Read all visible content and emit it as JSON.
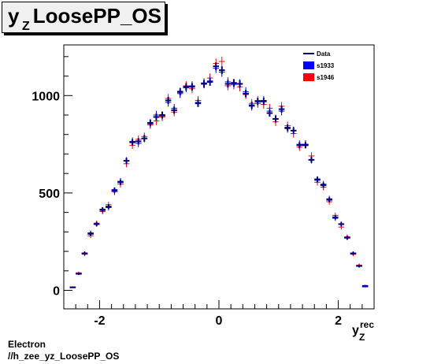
{
  "title": {
    "main": "y",
    "sub": "Z",
    "rest": " LoosePP_OS"
  },
  "xlabel": {
    "main": "y",
    "sub": "Z",
    "sup": "rec"
  },
  "footer": {
    "line1": "Electron",
    "line2": "//h_zee_yz_LoosePP_OS"
  },
  "colors": {
    "data": "#00007f",
    "s1933": "#0000ff",
    "s1946": "#ff0000"
  },
  "chart_data": {
    "type": "scatter",
    "xlim": [
      -2.6,
      2.6
    ],
    "ylim": [
      -95,
      1260
    ],
    "xticks": [
      -2,
      0,
      2
    ],
    "yticks": [
      0,
      500,
      1000
    ],
    "grid": false,
    "legend_position": "top-right",
    "legend": [
      {
        "label": "Data",
        "style": "line"
      },
      {
        "label": "s1933",
        "style": "box"
      },
      {
        "label": "s1946",
        "style": "box"
      }
    ],
    "bin_half_width": 0.05,
    "x": [
      -2.45,
      -2.35,
      -2.25,
      -2.15,
      -2.05,
      -1.95,
      -1.85,
      -1.75,
      -1.65,
      -1.55,
      -1.45,
      -1.35,
      -1.25,
      -1.15,
      -1.05,
      -0.95,
      -0.85,
      -0.75,
      -0.65,
      -0.55,
      -0.45,
      -0.35,
      -0.25,
      -0.15,
      -0.05,
      0.05,
      0.15,
      0.25,
      0.35,
      0.45,
      0.55,
      0.65,
      0.75,
      0.85,
      0.95,
      1.05,
      1.15,
      1.25,
      1.35,
      1.45,
      1.55,
      1.65,
      1.75,
      1.85,
      1.95,
      2.05,
      2.15,
      2.25,
      2.35,
      2.45
    ],
    "series": [
      {
        "name": "Data",
        "values": [
          15,
          85,
          190,
          290,
          340,
          415,
          430,
          515,
          555,
          665,
          760,
          765,
          780,
          860,
          890,
          900,
          975,
          925,
          1020,
          1045,
          1045,
          960,
          1060,
          1070,
          1150,
          1130,
          1060,
          1065,
          1060,
          1010,
          950,
          970,
          970,
          910,
          880,
          930,
          835,
          820,
          745,
          745,
          670,
          570,
          540,
          465,
          375,
          340,
          270,
          190,
          125,
          20
        ]
      },
      {
        "name": "s1933",
        "values": [
          15,
          85,
          190,
          295,
          340,
          410,
          425,
          510,
          560,
          665,
          765,
          755,
          780,
          855,
          900,
          895,
          965,
          935,
          1010,
          1040,
          1050,
          965,
          1065,
          1075,
          1140,
          1120,
          1070,
          1060,
          1060,
          1020,
          945,
          960,
          975,
          920,
          880,
          920,
          830,
          820,
          750,
          750,
          670,
          565,
          545,
          470,
          370,
          340,
          270,
          190,
          125,
          25
        ]
      },
      {
        "name": "s1946",
        "values": [
          18,
          90,
          185,
          280,
          345,
          405,
          440,
          505,
          545,
          650,
          745,
          775,
          790,
          850,
          870,
          890,
          985,
          915,
          1015,
          1050,
          1035,
          975,
          1060,
          1090,
          1165,
          1175,
          1050,
          1055,
          1045,
          1005,
          960,
          975,
          955,
          935,
          865,
          945,
          845,
          805,
          735,
          750,
          690,
          555,
          530,
          455,
          385,
          325,
          275,
          185,
          130,
          22
        ]
      }
    ]
  }
}
